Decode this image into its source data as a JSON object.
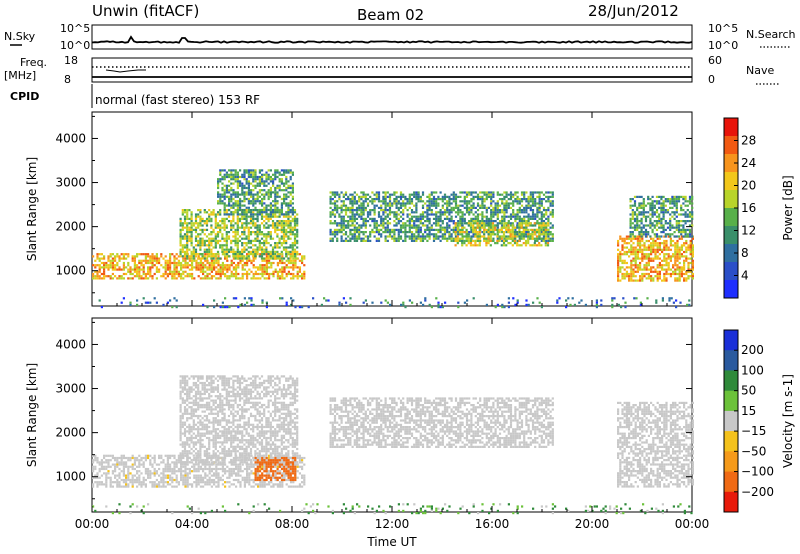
{
  "header": {
    "station": "Unwin (fitACF)",
    "beam": "Beam 02",
    "date": "28/Jun/2012"
  },
  "top_panels": {
    "nsky_label": "N.Sky",
    "nsky_ticks": [
      "10^5",
      "10^0"
    ],
    "nsearch_label": "N.Search",
    "nsearch_ticks": [
      "10^5",
      "10^0"
    ],
    "freq_label": "Freq.",
    "freq_unit": "[MHz]",
    "freq_ticks": [
      "18",
      "8"
    ],
    "nave_label": "Nave",
    "nave_ticks": [
      "60",
      "0"
    ],
    "cpid_label": "CPID",
    "cpid_text": "normal (fast stereo) 153 RF"
  },
  "chart_data": [
    {
      "type": "heatmap",
      "name": "power",
      "ylabel": "Slant Range [km]",
      "ylim": [
        200,
        4600
      ],
      "yticks": [
        1000,
        2000,
        3000,
        4000
      ],
      "x_ticks": [
        "00:00",
        "04:00",
        "08:00",
        "12:00",
        "16:00",
        "20:00",
        "00:00"
      ],
      "x_range_hours": [
        0,
        24
      ],
      "colorbar": {
        "label": "Power [dB]",
        "range": [
          0,
          32
        ],
        "ticks": [
          4,
          8,
          12,
          16,
          20,
          24,
          28
        ],
        "colors": [
          "#1f2fff",
          "#2b4fc8",
          "#2f6fa0",
          "#3a8f6a",
          "#58b04a",
          "#b8d42a",
          "#f2c71a",
          "#f7941d",
          "#f25a12",
          "#e8140a"
        ]
      },
      "regions": [
        {
          "t0": 0.0,
          "t1": 8.5,
          "r0": 850,
          "r1": 1400,
          "level": 22
        },
        {
          "t0": 3.5,
          "t1": 8.2,
          "r0": 1300,
          "r1": 2400,
          "level": 16
        },
        {
          "t0": 5.0,
          "t1": 8.0,
          "r0": 2300,
          "r1": 3300,
          "level": 12
        },
        {
          "t0": 9.5,
          "t1": 18.4,
          "r0": 1700,
          "r1": 2800,
          "level": 12
        },
        {
          "t0": 14.5,
          "t1": 18.2,
          "r0": 1600,
          "r1": 2100,
          "level": 18
        },
        {
          "t0": 21.0,
          "t1": 24.0,
          "r0": 800,
          "r1": 1800,
          "level": 22
        },
        {
          "t0": 21.5,
          "t1": 24.0,
          "r0": 1800,
          "r1": 2700,
          "level": 12
        },
        {
          "t0": 0.0,
          "t1": 24.0,
          "r0": 200,
          "r1": 400,
          "level": 8
        }
      ]
    },
    {
      "type": "heatmap",
      "name": "velocity",
      "ylabel": "Slant Range [km]",
      "ylim": [
        200,
        4600
      ],
      "yticks": [
        1000,
        2000,
        3000,
        4000
      ],
      "x_ticks": [
        "00:00",
        "04:00",
        "08:00",
        "12:00",
        "16:00",
        "20:00",
        "00:00"
      ],
      "xlabel": "Time UT",
      "x_range_hours": [
        0,
        24
      ],
      "colorbar": {
        "label": "Velocity [m s-1]",
        "ticks": [
          "200",
          "100",
          "50",
          "15",
          "−15",
          "−50",
          "−100",
          "−200"
        ],
        "colors": [
          "#1a2fd8",
          "#2a5a9e",
          "#2f8a3a",
          "#6cc23a",
          "#c8c8c8",
          "#f4c21c",
          "#f59a1a",
          "#f06a14",
          "#e81a0a"
        ]
      },
      "regions": [
        {
          "t0": 0.0,
          "t1": 8.5,
          "r0": 800,
          "r1": 1500,
          "level": -5
        },
        {
          "t0": 3.5,
          "t1": 8.2,
          "r0": 1300,
          "r1": 3300,
          "level": 0
        },
        {
          "t0": 6.5,
          "t1": 8.1,
          "r0": 950,
          "r1": 1450,
          "level": -110
        },
        {
          "t0": 9.5,
          "t1": 18.4,
          "r0": 1700,
          "r1": 2800,
          "level": 0
        },
        {
          "t0": 21.0,
          "t1": 24.0,
          "r0": 800,
          "r1": 2700,
          "level": 0
        },
        {
          "t0": 0.0,
          "t1": 24.0,
          "r0": 200,
          "r1": 400,
          "level": 30
        }
      ]
    }
  ]
}
